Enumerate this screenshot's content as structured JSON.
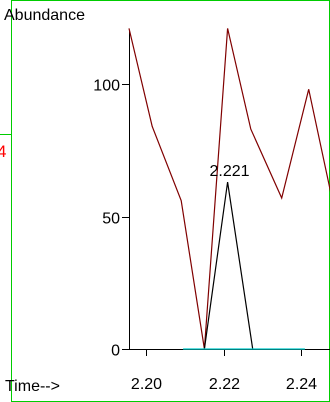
{
  "chart_data": {
    "type": "line",
    "ylabel": "Abundance",
    "xlabel": "Time-->",
    "xlim": [
      2.1955,
      2.2475
    ],
    "ylim": [
      -5,
      130
    ],
    "x_ticks": [
      {
        "value": 2.2,
        "label": "2.20"
      },
      {
        "value": 2.22,
        "label": "2.22"
      },
      {
        "value": 2.24,
        "label": "2.24"
      }
    ],
    "y_ticks": [
      {
        "value": 0,
        "label": "0"
      },
      {
        "value": 50,
        "label": "50"
      },
      {
        "value": 100,
        "label": "100"
      }
    ],
    "series": [
      {
        "color": "#800000",
        "x": [
          2.1955,
          2.2015,
          2.209,
          2.215,
          2.221,
          2.227,
          2.235,
          2.242,
          2.248
        ],
        "y": [
          121,
          84,
          56,
          0,
          121,
          83,
          57,
          98,
          57
        ]
      },
      {
        "color": "#000000",
        "x": [
          2.215,
          2.221,
          2.2275
        ],
        "y": [
          0,
          63,
          0
        ]
      },
      {
        "color": "#00cccc",
        "x": [
          2.2095,
          2.241
        ],
        "y": [
          0,
          0
        ]
      }
    ],
    "annotations": [
      {
        "x": 2.221,
        "y": 63,
        "text": "2.221"
      }
    ],
    "left_edge_label": {
      "text": "4",
      "color": "#ff0000"
    },
    "frame_color": "#00cc00"
  }
}
